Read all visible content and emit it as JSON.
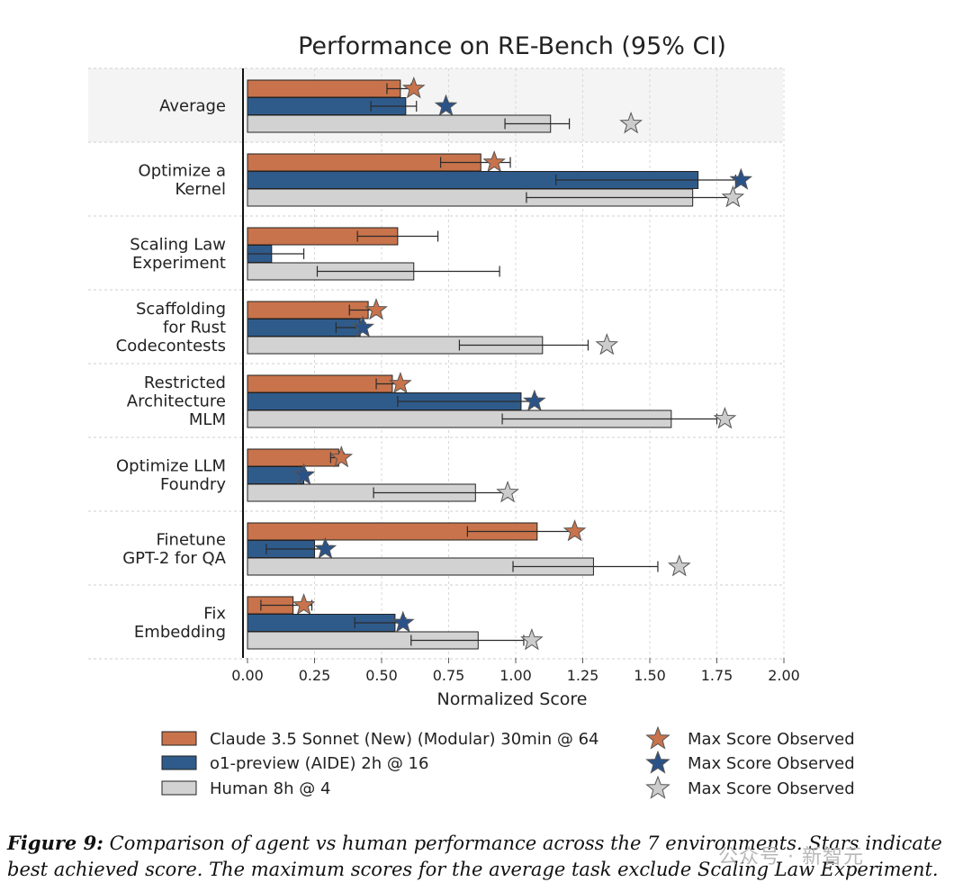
{
  "chart_data": {
    "type": "bar",
    "orientation": "horizontal",
    "title": "Performance on RE-Bench (95% CI)",
    "xlabel": "Normalized Score",
    "xlim": [
      0,
      2
    ],
    "xticks": [
      "0.00",
      "0.25",
      "0.50",
      "0.75",
      "1.00",
      "1.25",
      "1.50",
      "1.75",
      "2.00"
    ],
    "xtick_values": [
      0,
      0.25,
      0.5,
      0.75,
      1.0,
      1.25,
      1.5,
      1.75,
      2.0
    ],
    "grid": true,
    "legend_position": "bottom",
    "categories": [
      "Average",
      "Optimize a\nKernel",
      "Scaling Law\nExperiment",
      "Scaffolding\nfor Rust\nCodecontests",
      "Restricted\nArchitecture\nMLM",
      "Optimize LLM\nFoundry",
      "Finetune\nGPT-2 for QA",
      "Fix\nEmbedding"
    ],
    "series": [
      {
        "name": "Claude 3.5 Sonnet (New) (Modular) 30min @ 64",
        "color": "#c8734b",
        "star_color": "#c8734b",
        "values": [
          0.57,
          0.87,
          0.56,
          0.45,
          0.54,
          0.34,
          1.08,
          0.17
        ],
        "ci_low": [
          0.52,
          0.72,
          0.41,
          0.38,
          0.48,
          0.31,
          0.82,
          0.05
        ],
        "ci_high": [
          0.61,
          0.98,
          0.71,
          0.48,
          0.57,
          0.36,
          1.22,
          0.24
        ],
        "max_score": [
          0.62,
          0.92,
          null,
          0.48,
          0.57,
          0.35,
          1.22,
          0.21
        ]
      },
      {
        "name": "o1-preview (AIDE) 2h @ 16",
        "color": "#2f5b8b",
        "star_color": "#2a5288",
        "values": [
          0.59,
          1.68,
          0.09,
          0.42,
          1.02,
          0.21,
          0.25,
          0.55
        ],
        "ci_low": [
          0.46,
          1.15,
          0.0,
          0.33,
          0.56,
          0.2,
          0.07,
          0.4
        ],
        "ci_high": [
          0.63,
          1.82,
          0.21,
          0.44,
          1.08,
          0.22,
          0.3,
          0.59
        ],
        "max_score": [
          0.74,
          1.84,
          null,
          0.43,
          1.07,
          0.21,
          0.29,
          0.58
        ]
      },
      {
        "name": "Human 8h @ 4",
        "color": "#d2d2d2",
        "star_color": "#cccccc",
        "values": [
          1.13,
          1.66,
          0.62,
          1.1,
          1.58,
          0.85,
          1.29,
          0.86
        ],
        "ci_low": [
          0.96,
          1.04,
          0.26,
          0.79,
          0.95,
          0.47,
          0.99,
          0.61
        ],
        "ci_high": [
          1.2,
          1.81,
          0.94,
          1.27,
          1.75,
          0.97,
          1.53,
          1.03
        ],
        "max_score": [
          1.43,
          1.81,
          null,
          1.34,
          1.78,
          0.97,
          1.61,
          1.06
        ]
      }
    ],
    "legend": {
      "bars": [
        "Claude 3.5 Sonnet (New) (Modular) 30min @ 64",
        "o1-preview (AIDE) 2h @ 16",
        "Human 8h @ 4"
      ],
      "stars": [
        "Max Score Observed",
        "Max Score Observed",
        "Max Score Observed"
      ]
    }
  },
  "caption": {
    "lead": "Figure 9:",
    "text": " Comparison of agent vs human performance across the 7 environments. Stars indicate best achieved score. The maximum scores for the average task exclude Scaling Law Experiment."
  },
  "watermark": "公众号 · 新智元"
}
